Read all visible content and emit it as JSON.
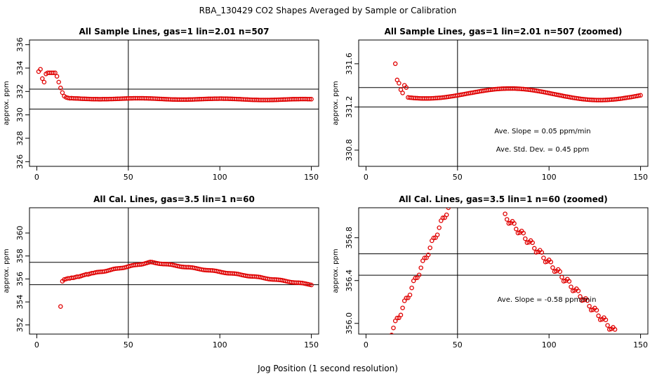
{
  "page": {
    "title": "RBA_130429  CO2 Shapes Averaged by Sample or Calibration",
    "xlabel": "Jog Position (1 second resolution)"
  },
  "colors": {
    "points": "#e00000",
    "axes": "#000000"
  },
  "chart_data": [
    {
      "type": "scatter",
      "title": "All Sample Lines, gas=1 lin=2.01 n=507",
      "ylabel": "approx. ppm",
      "xlim": [
        -4,
        154
      ],
      "ylim": [
        325.6,
        336.4
      ],
      "xticks": [
        0,
        50,
        100,
        150
      ],
      "yticks": [
        326,
        328,
        330,
        332,
        334,
        336
      ],
      "vline": 50,
      "hlines": [
        330.5,
        332.2
      ],
      "annotations": [],
      "segments": [
        {
          "x": [
            1,
            2,
            3,
            4,
            5,
            6,
            7,
            8,
            9,
            10,
            11,
            12,
            13,
            14,
            15,
            16,
            17,
            18
          ],
          "y": [
            333.7,
            333.9,
            333.1,
            332.8,
            333.5,
            333.6,
            333.6,
            333.6,
            333.6,
            333.6,
            333.3,
            332.8,
            332.3,
            331.9,
            331.6,
            331.5,
            331.45,
            331.42
          ]
        },
        {
          "x0": 19,
          "x1": 150,
          "y0": 331.4,
          "y1": 331.3,
          "amp": 0.05,
          "period": 45,
          "phase": 0
        }
      ]
    },
    {
      "type": "scatter",
      "title": "All Sample Lines, gas=1 lin=2.01 n=507 (zoomed)",
      "ylabel": "approx. ppm",
      "xlim": [
        -4,
        154
      ],
      "ylim": [
        330.65,
        331.82
      ],
      "xticks": [
        0,
        50,
        100,
        150
      ],
      "yticks": [
        330.8,
        331.2,
        331.6
      ],
      "ytick_labels": [
        "330.8",
        "331.2",
        "331.6"
      ],
      "vline": 50,
      "hlines": [
        331.2,
        331.38
      ],
      "annotations": [
        "Ave. Slope =  0.05  ppm/min",
        "Ave. Std. Dev. =  0.45  ppm"
      ],
      "segments": [
        {
          "x": [
            16,
            17,
            18,
            19,
            20,
            21,
            22
          ],
          "y": [
            331.6,
            331.45,
            331.42,
            331.36,
            331.33,
            331.4,
            331.38
          ]
        },
        {
          "x0": 23,
          "x1": 150,
          "y0": 331.33,
          "y1": 331.31,
          "amp": 0.05,
          "period": 95,
          "phase": 2.6
        }
      ]
    },
    {
      "type": "scatter",
      "title": "All Cal. Lines, gas=3.5 lin=1 n=60",
      "ylabel": "approx. ppm",
      "xlim": [
        -4,
        154
      ],
      "ylim": [
        351.2,
        362.2
      ],
      "xticks": [
        0,
        50,
        100,
        150
      ],
      "yticks": [
        352,
        354,
        356,
        358,
        360
      ],
      "vline": 50,
      "hlines": [
        355.5,
        357.45
      ],
      "annotations": [],
      "segments": [
        {
          "x": [
            13
          ],
          "y": [
            353.6
          ]
        },
        {
          "x": [
            14,
            15,
            16,
            17,
            18,
            19,
            20,
            21,
            22,
            23,
            24,
            25,
            26,
            27,
            28,
            29,
            30
          ],
          "y": [
            355.8,
            355.95,
            356.0,
            356.05,
            356.05,
            356.1,
            356.1,
            356.15,
            356.2,
            356.2,
            356.25,
            356.3,
            356.35,
            356.4,
            356.4,
            356.45,
            356.5
          ]
        },
        {
          "x0": 31,
          "x1": 62,
          "y0": 356.5,
          "y1": 357.45,
          "amp": 0.03,
          "period": 10,
          "phase": 0
        },
        {
          "x0": 63,
          "x1": 150,
          "y0": 357.45,
          "y1": 355.5,
          "amp": 0.03,
          "period": 12,
          "phase": 1
        }
      ]
    },
    {
      "type": "scatter",
      "title": "All Cal. Lines, gas=3.5 lin=1 n=60 (zoomed)",
      "ylabel": "approx. ppm",
      "xlim": [
        -4,
        154
      ],
      "ylim": [
        355.9,
        357.08
      ],
      "xticks": [
        0,
        50,
        100,
        150
      ],
      "yticks": [
        356.0,
        356.4,
        356.8
      ],
      "ytick_labels": [
        "356.0",
        "356.4",
        "356.8"
      ],
      "vline": 50,
      "hlines": [
        356.45,
        356.65
      ],
      "annotations": [
        "Ave. Slope =  -0.58  ppm/min"
      ],
      "segments": [
        {
          "x0": 14,
          "x1": 45,
          "y0": 355.92,
          "y1": 357.08,
          "amp": 0.03,
          "period": 5,
          "phase": 0
        },
        {
          "x0": 76,
          "x1": 136,
          "y0": 357.0,
          "y1": 355.92,
          "amp": 0.03,
          "period": 5,
          "phase": 1
        }
      ]
    }
  ]
}
